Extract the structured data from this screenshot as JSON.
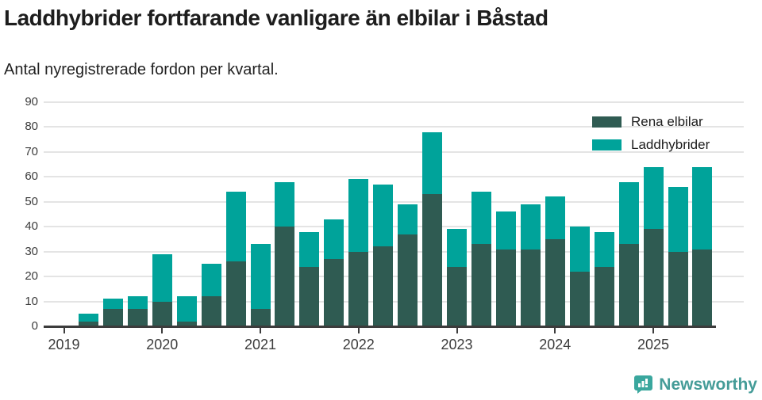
{
  "title": "Laddhybrider fortfarande vanligare än elbilar i Båstad",
  "subtitle": "Antal nyregistrerade fordon per kvartal.",
  "colors": {
    "rena_elbilar": "#2f5b52",
    "laddhybrider": "#00a39a",
    "axis": "#3c3c3c",
    "grid": "#e4e4e4",
    "logo_teal": "#3aa79e",
    "brand_text": "#459c98"
  },
  "chart_data": {
    "type": "bar",
    "stacked": true,
    "title": "Laddhybrider fortfarande vanligare än elbilar i Båstad",
    "subtitle": "Antal nyregistrerade fordon per kvartal.",
    "xlabel": "",
    "ylabel": "",
    "ylim": [
      0,
      90
    ],
    "ytick_step": 10,
    "grid": true,
    "legend_position": "top-right",
    "x": [
      "2019 Q1",
      "2019 Q2",
      "2019 Q3",
      "2019 Q4",
      "2020 Q1",
      "2020 Q2",
      "2020 Q3",
      "2020 Q4",
      "2021 Q1",
      "2021 Q2",
      "2021 Q3",
      "2021 Q4",
      "2022 Q1",
      "2022 Q2",
      "2022 Q3",
      "2022 Q4",
      "2023 Q1",
      "2023 Q2",
      "2023 Q3",
      "2023 Q4",
      "2024 Q1",
      "2024 Q2",
      "2024 Q3",
      "2024 Q4",
      "2025 Q1",
      "2025 Q2",
      "2025 Q3"
    ],
    "year_tick_labels": [
      "2019",
      "2020",
      "2021",
      "2022",
      "2023",
      "2024",
      "2025"
    ],
    "series": [
      {
        "name": "Rena elbilar",
        "color": "#2f5b52",
        "values": [
          0,
          2,
          7,
          7,
          10,
          2,
          12,
          26,
          7,
          40,
          24,
          27,
          30,
          32,
          37,
          53,
          24,
          33,
          31,
          31,
          35,
          22,
          24,
          33,
          39,
          30,
          31
        ]
      },
      {
        "name": "Laddhybrider",
        "color": "#00a39a",
        "values": [
          0,
          3,
          4,
          5,
          19,
          10,
          13,
          28,
          26,
          18,
          14,
          16,
          29,
          25,
          12,
          25,
          15,
          21,
          15,
          18,
          17,
          18,
          14,
          25,
          25,
          26,
          33
        ]
      }
    ],
    "stacked_totals": [
      0,
      5,
      11,
      12,
      29,
      12,
      25,
      54,
      33,
      58,
      38,
      43,
      59,
      57,
      49,
      78,
      39,
      54,
      46,
      49,
      52,
      40,
      38,
      58,
      64,
      56,
      64
    ]
  },
  "legend": {
    "items": [
      {
        "label": "Rena elbilar",
        "color": "#2f5b52"
      },
      {
        "label": "Laddhybrider",
        "color": "#00a39a"
      }
    ]
  },
  "footer": {
    "brand": "Newsworthy"
  }
}
